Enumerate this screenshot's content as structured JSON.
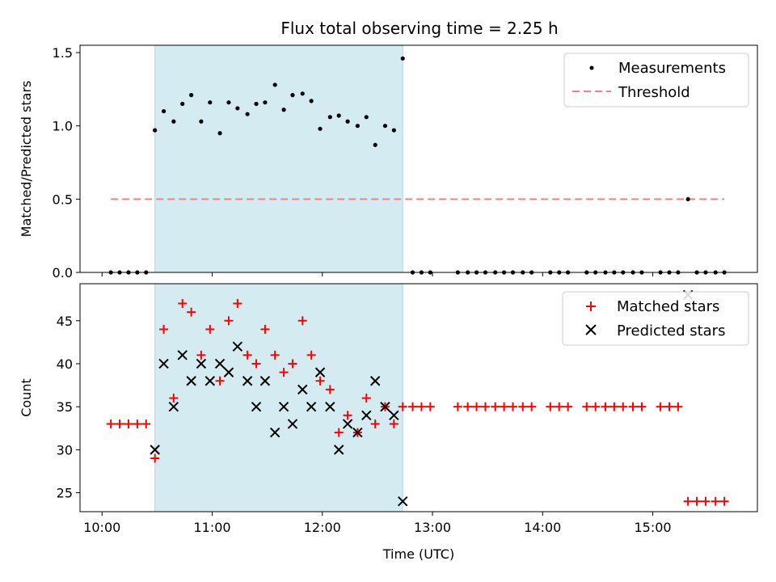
{
  "chart_data": {
    "type": "scatter",
    "title": "Flux total observing time = 2.25 h",
    "xlabel": "Time (UTC)",
    "x_ticks": [
      "10:00",
      "11:00",
      "12:00",
      "13:00",
      "14:00",
      "15:00"
    ],
    "x_tick_hours": [
      10,
      11,
      12,
      13,
      14,
      15
    ],
    "xlim_hours": [
      9.8,
      15.95
    ],
    "shaded_region_hours": [
      10.48,
      12.73
    ],
    "shade_color": "#d4ebf2",
    "panels": [
      {
        "ylabel": "Matched/Predicted stars",
        "ylim": [
          0,
          1.55
        ],
        "y_ticks": [
          "0.0",
          "0.5",
          "1.0",
          "1.5"
        ],
        "y_tick_values": [
          0,
          0.5,
          1.0,
          1.5
        ],
        "threshold": {
          "name": "Threshold",
          "value": 0.5,
          "x_range_hours": [
            10.08,
            15.65
          ],
          "color": "#ff7f7f"
        },
        "series": [
          {
            "name": "Measurements",
            "marker": "dot",
            "color": "#000000",
            "x": [
              10.08,
              10.16,
              10.24,
              10.32,
              10.4,
              10.48,
              10.56,
              10.65,
              10.73,
              10.81,
              10.9,
              10.98,
              11.07,
              11.15,
              11.23,
              11.32,
              11.4,
              11.48,
              11.57,
              11.65,
              11.73,
              11.82,
              11.9,
              11.98,
              12.07,
              12.15,
              12.23,
              12.32,
              12.4,
              12.48,
              12.57,
              12.65,
              12.73,
              12.82,
              12.9,
              12.98,
              13.23,
              13.32,
              13.4,
              13.48,
              13.57,
              13.65,
              13.73,
              13.82,
              13.9,
              14.07,
              14.15,
              14.23,
              14.4,
              14.48,
              14.57,
              14.65,
              14.73,
              14.82,
              14.9,
              15.07,
              15.15,
              15.23,
              15.32,
              15.4,
              15.48,
              15.57,
              15.65
            ],
            "y": [
              0,
              0,
              0,
              0,
              0,
              0.97,
              1.1,
              1.03,
              1.15,
              1.21,
              1.03,
              1.16,
              0.95,
              1.16,
              1.12,
              1.08,
              1.15,
              1.16,
              1.28,
              1.11,
              1.21,
              1.22,
              1.17,
              0.98,
              1.06,
              1.07,
              1.03,
              1.0,
              1.06,
              0.87,
              1.0,
              0.97,
              1.46,
              0,
              0,
              0,
              0,
              0,
              0,
              0,
              0,
              0,
              0,
              0,
              0,
              0,
              0,
              0,
              0,
              0,
              0,
              0,
              0,
              0,
              0,
              0,
              0,
              0,
              0.5,
              0,
              0,
              0,
              0
            ]
          }
        ],
        "legend_position": "top-right"
      },
      {
        "ylabel": "Count",
        "ylim": [
          22.8,
          49.3
        ],
        "y_ticks": [
          "25",
          "30",
          "35",
          "40",
          "45"
        ],
        "y_tick_values": [
          25,
          30,
          35,
          40,
          45
        ],
        "series": [
          {
            "name": "Matched stars",
            "marker": "plus",
            "color": "#ff0000",
            "x": [
              10.08,
              10.16,
              10.24,
              10.32,
              10.4,
              10.48,
              10.56,
              10.65,
              10.73,
              10.81,
              10.9,
              10.98,
              11.07,
              11.15,
              11.23,
              11.32,
              11.4,
              11.48,
              11.57,
              11.65,
              11.73,
              11.82,
              11.9,
              11.98,
              12.07,
              12.15,
              12.23,
              12.32,
              12.4,
              12.48,
              12.57,
              12.65,
              12.73,
              12.82,
              12.9,
              12.98,
              13.23,
              13.32,
              13.4,
              13.48,
              13.57,
              13.65,
              13.73,
              13.82,
              13.9,
              14.07,
              14.15,
              14.23,
              14.4,
              14.48,
              14.57,
              14.65,
              14.73,
              14.82,
              14.9,
              15.07,
              15.15,
              15.23,
              15.32,
              15.4,
              15.48,
              15.57,
              15.65
            ],
            "y": [
              33,
              33,
              33,
              33,
              33,
              29,
              44,
              36,
              47,
              46,
              41,
              44,
              38,
              45,
              47,
              41,
              40,
              44,
              41,
              39,
              40,
              45,
              41,
              38,
              37,
              32,
              34,
              32,
              36,
              33,
              35,
              33,
              35,
              35,
              35,
              35,
              35,
              35,
              35,
              35,
              35,
              35,
              35,
              35,
              35,
              35,
              35,
              35,
              35,
              35,
              35,
              35,
              35,
              35,
              35,
              35,
              35,
              35,
              24,
              24,
              24,
              24,
              24
            ]
          },
          {
            "name": "Predicted stars",
            "marker": "x",
            "color": "#000000",
            "x": [
              10.48,
              10.56,
              10.65,
              10.73,
              10.81,
              10.9,
              10.98,
              11.07,
              11.15,
              11.23,
              11.32,
              11.4,
              11.48,
              11.57,
              11.65,
              11.73,
              11.82,
              11.9,
              11.98,
              12.07,
              12.15,
              12.23,
              12.32,
              12.4,
              12.48,
              12.57,
              12.65,
              12.73,
              15.32
            ],
            "y": [
              30,
              40,
              35,
              41,
              38,
              40,
              38,
              40,
              39,
              42,
              38,
              35,
              38,
              32,
              35,
              33,
              37,
              35,
              39,
              35,
              30,
              33,
              32,
              34,
              38,
              35,
              34,
              24,
              48
            ]
          }
        ],
        "legend_position": "top-right"
      }
    ]
  }
}
